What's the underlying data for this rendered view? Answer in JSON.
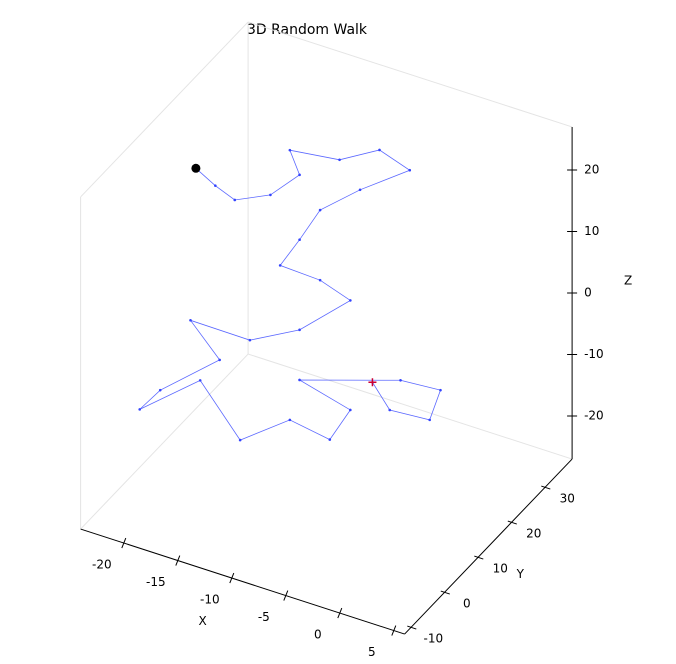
{
  "chart_data": {
    "type": "line3d",
    "title": "3D Random Walk",
    "xlabel": "X",
    "ylabel": "Y",
    "zlabel": "Z",
    "x": [
      -21.7,
      -19.9,
      -18.1,
      -14.8,
      -12.1,
      -13.0,
      -11.5,
      -7.8,
      -5.0,
      -9.6,
      -13.3,
      -15.2,
      -17.0,
      -13.3,
      -10.5,
      -12.1,
      -16.7,
      -22.2,
      -19.5,
      -21.9,
      -23.8,
      -18.2,
      -14.5,
      -9.9,
      -6.2,
      -4.3,
      -9.0,
      1.9,
      5.6,
      4.6,
      0.9,
      -0.7
    ],
    "y": [
      15,
      15,
      15,
      15,
      15,
      15,
      25,
      25,
      25,
      25,
      25,
      25,
      25,
      25,
      25,
      15,
      15,
      15,
      15,
      5,
      5,
      5,
      5,
      5,
      5,
      5,
      5,
      0,
      0,
      0,
      0,
      0
    ],
    "z": [
      17.6,
      15.8,
      14.5,
      17.2,
      22.0,
      25.5,
      19.1,
      22.8,
      21.1,
      15.3,
      9.9,
      4.0,
      -1.2,
      -1.5,
      -3.2,
      -3.2,
      -7.5,
      -7.4,
      -12.3,
      -12.9,
      -17.1,
      -9.2,
      -16.8,
      -10.9,
      -12.0,
      -6.1,
      -3.9,
      5.1,
      5.6,
      0.2,
      -0.3,
      3.3
    ],
    "color": "#3344ff",
    "start_color": "#000000",
    "end_color": "#cc0033",
    "xlim": [
      -24,
      6
    ],
    "ylim": [
      -12,
      38
    ],
    "zlim": [
      -27,
      27
    ],
    "xticks": [
      -20,
      -15,
      -10,
      -5,
      0,
      5
    ],
    "yticks": [
      -10,
      0,
      10,
      20,
      30
    ],
    "zticks": [
      -20,
      -10,
      0,
      10,
      20
    ]
  }
}
